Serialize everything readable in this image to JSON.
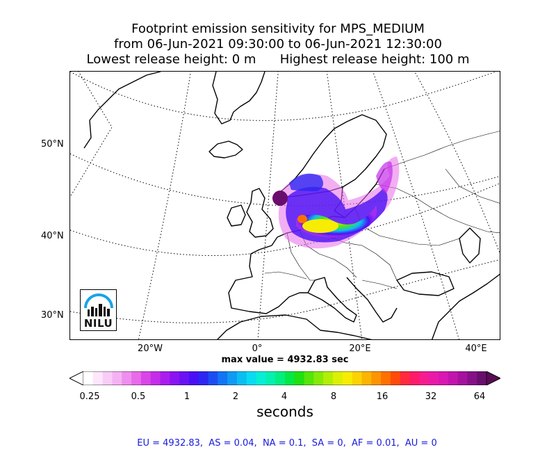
{
  "title": {
    "line1": "Footprint emission sensitivity for MPS_MEDIUM",
    "line2": "from 06-Jun-2021 09:30:00 to 06-Jun-2021 12:30:00",
    "line3": "Lowest release height: 0 m      Highest release height: 100 m"
  },
  "map": {
    "lat_labels": [
      "50°N",
      "40°N",
      "30°N"
    ],
    "lon_labels": [
      "20°W",
      "0°",
      "20°E",
      "40°E"
    ],
    "grid_style": "dotted",
    "logo_text": "NILU"
  },
  "max_value_text": "max value = 4932.83 sec",
  "colorbar": {
    "ticks": [
      "0.25",
      "0.5",
      "1",
      "2",
      "4",
      "8",
      "16",
      "32",
      "64"
    ],
    "label": "seconds",
    "extend": "both",
    "colors": [
      "#ffffff",
      "#fde6fb",
      "#f9ccf7",
      "#f5b2f3",
      "#ee8eef",
      "#e86be9",
      "#d946e6",
      "#c52ee8",
      "#aa1ded",
      "#8b15f0",
      "#6a12f3",
      "#4a10f5",
      "#2d27f2",
      "#1d4df2",
      "#1375f3",
      "#0f9bf3",
      "#0bbef2",
      "#08dcf0",
      "#06eed6",
      "#04f0b0",
      "#02ee80",
      "#03e845",
      "#20e00f",
      "#55e50a",
      "#86ea08",
      "#b3ee06",
      "#dcf005",
      "#f6ec04",
      "#fbd303",
      "#fcb402",
      "#fd9402",
      "#fe7101",
      "#ff4b0a",
      "#ff2a3d",
      "#fd1b69",
      "#f51c8f",
      "#ea1aa8",
      "#d917b3",
      "#c214ad",
      "#a5129d",
      "#861187",
      "#6a0e6e"
    ],
    "extend_low_color": "#ffffff",
    "extend_high_color": "#5a0b55"
  },
  "stats_text": "EU = 4932.83,  AS = 0.04,  NA = 0.1,  SA = 0,  AF = 0.01,  AU = 0"
}
